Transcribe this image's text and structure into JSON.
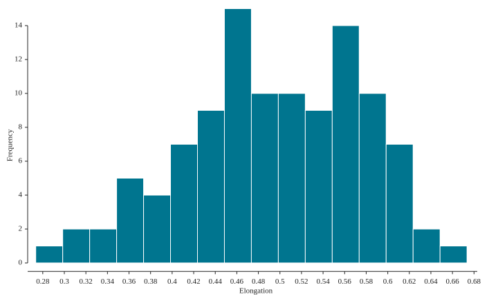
{
  "chart_data": {
    "type": "histogram",
    "xlabel": "Elongation",
    "ylabel": "Frequency",
    "bins": [
      0.2735,
      0.2985,
      0.3235,
      0.3485,
      0.3735,
      0.3985,
      0.4235,
      0.4485,
      0.4735,
      0.4985,
      0.5235,
      0.5485,
      0.5735,
      0.5985,
      0.6235,
      0.6485,
      0.6735
    ],
    "values": [
      1,
      2,
      2,
      5,
      4,
      7,
      9,
      15,
      10,
      10,
      9,
      14,
      10,
      7,
      2,
      1
    ],
    "color": "#00758f",
    "xlim": [
      0.266,
      0.683
    ],
    "xticks": [
      0.28,
      0.3,
      0.32,
      0.34,
      0.36,
      0.38,
      0.4,
      0.42,
      0.44,
      0.46,
      0.48,
      0.5,
      0.52,
      0.54,
      0.56,
      0.58,
      0.6,
      0.62,
      0.64,
      0.66,
      0.68
    ],
    "ylim": [
      -0.5,
      15
    ],
    "yticks": [
      0,
      2,
      4,
      6,
      8,
      10,
      12,
      14
    ]
  }
}
